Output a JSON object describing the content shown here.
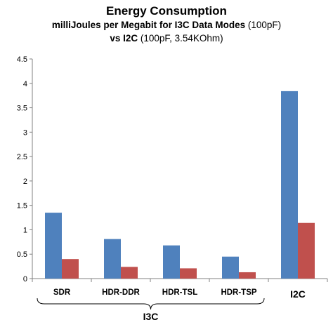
{
  "chart_data": {
    "type": "bar",
    "title": "Energy Consumption",
    "subtitle_line1_bold": "milliJoules per Megabit for I3C Data Modes",
    "subtitle_line1_rest": " (100pF)",
    "subtitle_line2_bold": "vs I2C",
    "subtitle_line2_rest": " (100pF, 3.54KOhm)",
    "categories": [
      "SDR",
      "HDR-DDR",
      "HDR-TSL",
      "HDR-TSP",
      "I2C"
    ],
    "group_label": "I3C",
    "series": [
      {
        "values": [
          1.35,
          0.81,
          0.68,
          0.45,
          3.84
        ],
        "color": "#4f81bd"
      },
      {
        "values": [
          0.4,
          0.24,
          0.21,
          0.13,
          1.14
        ],
        "color": "#c0504d"
      }
    ],
    "yticks": [
      "0",
      "0.5",
      "1",
      "1.5",
      "2",
      "2.5",
      "3",
      "3.5",
      "4",
      "4.5"
    ],
    "ylim": [
      0,
      4.5
    ],
    "grid": false,
    "legend": "none"
  }
}
